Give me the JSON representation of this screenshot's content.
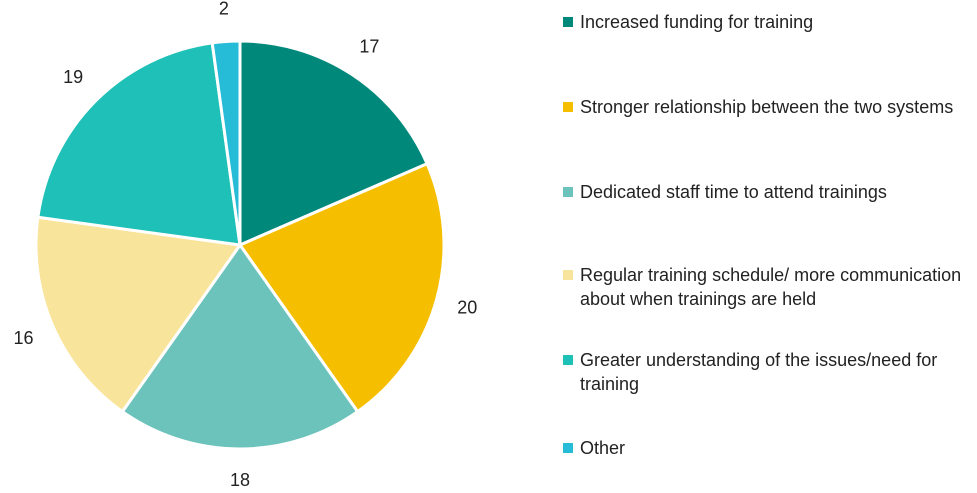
{
  "chart_data": {
    "type": "pie",
    "categories": [
      "Increased funding for training",
      "Stronger relationship between the two systems",
      "Dedicated staff time to attend trainings",
      "Regular training schedule/ more communication about when trainings are held",
      "Greater understanding of the issues/need for training",
      "Other"
    ],
    "values": [
      17,
      20,
      18,
      16,
      19,
      2
    ],
    "colors": [
      "#00897b",
      "#f5bf00",
      "#6cc3bb",
      "#f9e49b",
      "#1ec0b7",
      "#26bcd7"
    ],
    "legend": "right"
  }
}
